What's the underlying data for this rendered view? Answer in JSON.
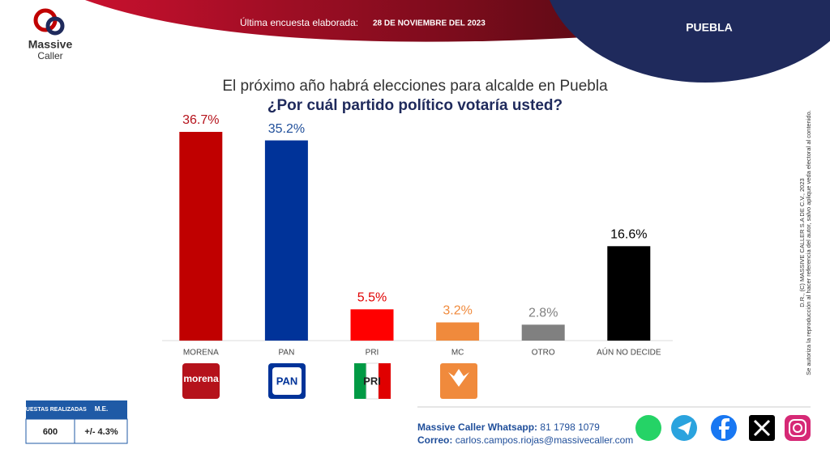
{
  "header": {
    "survey_label": "Última encuesta elaborada:",
    "survey_date": "28 DE NOVIEMBRE DEL 2023",
    "region": "PUEBLA"
  },
  "logo": {
    "line1": "Massive",
    "line2": "Caller"
  },
  "chart_data": {
    "type": "bar",
    "title": "El próximo año habrá elecciones para alcalde en Puebla",
    "subtitle": "¿Por cuál partido político votaría usted?",
    "categories": [
      "MORENA",
      "PAN",
      "PRI",
      "MC",
      "OTRO",
      "AÚN NO DECIDE"
    ],
    "values": [
      36.7,
      35.2,
      5.5,
      3.2,
      2.8,
      16.6
    ],
    "value_labels": [
      "36.7%",
      "35.2%",
      "5.5%",
      "3.2%",
      "2.8%",
      "16.6%"
    ],
    "colors": [
      "#c00000",
      "#003399",
      "#ff0000",
      "#f08a3c",
      "#808080",
      "#000000"
    ],
    "label_colors": [
      "#b5121b",
      "#1f4e9a",
      "#e00000",
      "#f08a3c",
      "#808080",
      "#000000"
    ]
  },
  "party_logos": [
    "morena",
    "PAN",
    "PRI"
  ],
  "side_note": {
    "line1": "D.R., (C) MASSIVE CALLER S.A DE C.V., 2023",
    "line2": "Se autoriza la reproducción al hacer referencia del autor, salvo aplique veda electoral al contenido."
  },
  "table": {
    "headers": [
      "ENCUESTAS REALIZADAS",
      "M.E."
    ],
    "rows": [
      [
        "600",
        "+/- 4.3%"
      ]
    ]
  },
  "footer": {
    "whatsapp_label": "Massive Caller Whatsapp:",
    "whatsapp_number": "81 1798 1079",
    "email_label": "Correo:",
    "email": "carlos.campos.riojas@massivecaller.com"
  }
}
